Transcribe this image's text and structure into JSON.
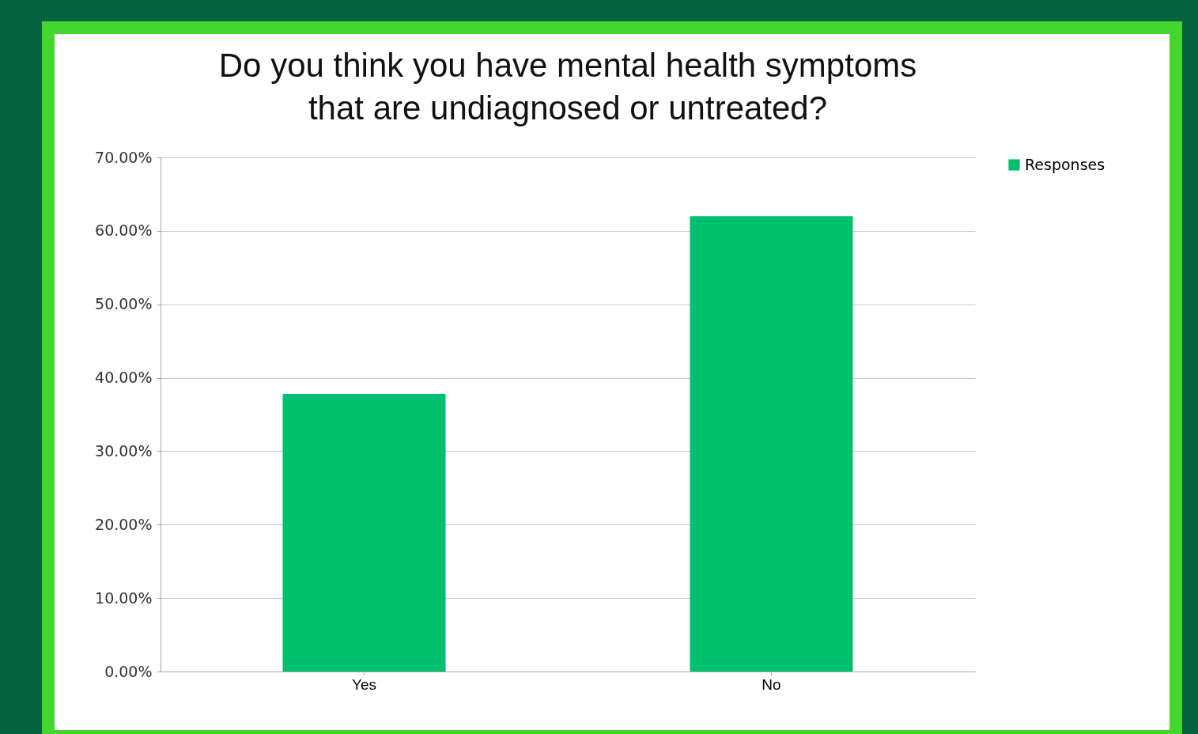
{
  "chart_data": {
    "type": "bar",
    "title": "Do you think you have mental health symptoms\nthat are undiagnosed or untreated?",
    "categories": [
      "Yes",
      "No"
    ],
    "series": [
      {
        "name": "Responses",
        "color": "#00bf6f",
        "values": [
          37.8,
          62.0
        ]
      }
    ],
    "ylim": [
      0,
      70
    ],
    "yticks": [
      {
        "value": 0,
        "label": "0.00%"
      },
      {
        "value": 10,
        "label": "10.00%"
      },
      {
        "value": 20,
        "label": "20.00%"
      },
      {
        "value": 30,
        "label": "30.00%"
      },
      {
        "value": 40,
        "label": "40.00%"
      },
      {
        "value": 50,
        "label": "50.00%"
      },
      {
        "value": 60,
        "label": "60.00%"
      },
      {
        "value": 70,
        "label": "70.00%"
      }
    ],
    "grid": "y",
    "legend": "right"
  }
}
